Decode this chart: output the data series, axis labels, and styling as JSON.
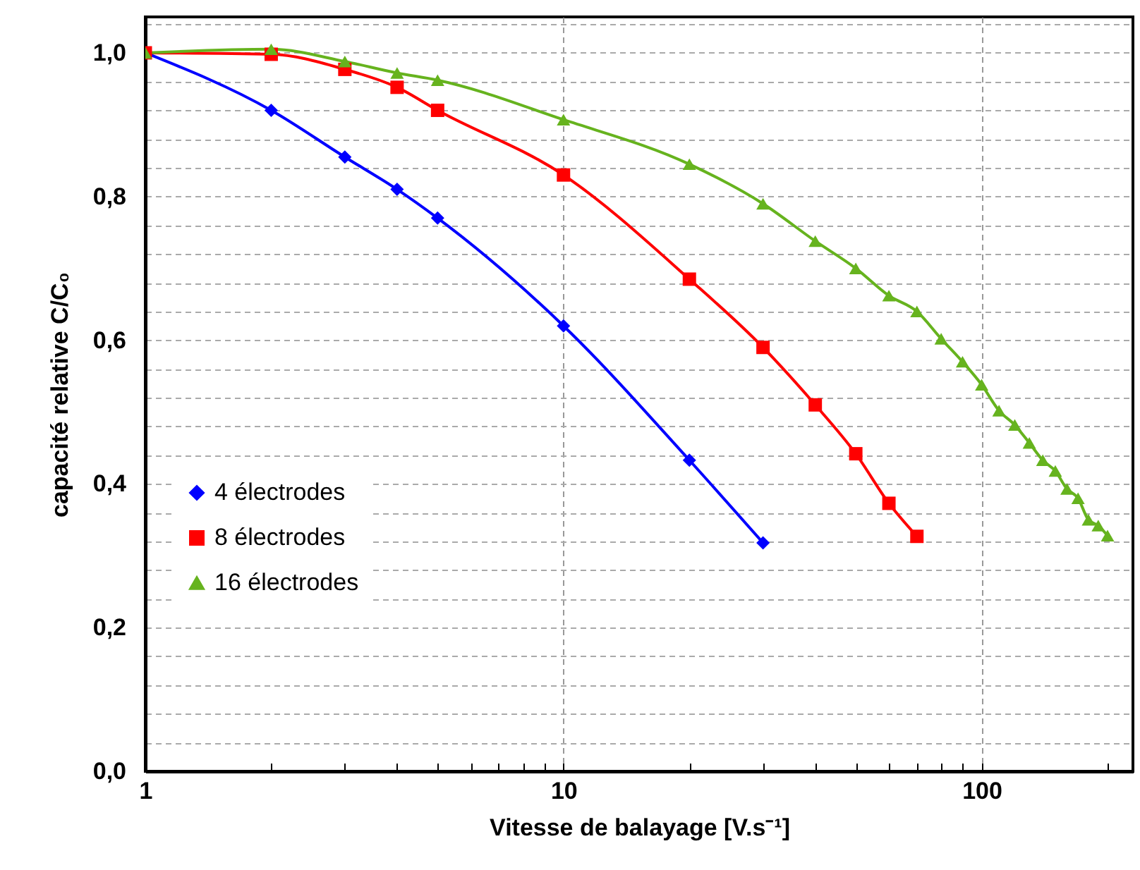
{
  "chart_data": {
    "type": "line",
    "xlabel": "Vitesse de balayage [V.s⁻¹]",
    "ylabel": "capacité relative C/C₀",
    "log": "x",
    "xlim": [
      1,
      230
    ],
    "ylim": [
      0,
      1.05
    ],
    "xticks": [
      1,
      {
        "value": 2,
        "label": null
      },
      {
        "value": 3,
        "label": null
      },
      {
        "value": 4,
        "label": null
      },
      {
        "value": 5,
        "label": null
      },
      {
        "value": 6,
        "label": null
      },
      {
        "value": 7,
        "label": null
      },
      {
        "value": 8,
        "label": null
      },
      {
        "value": 9,
        "label": null
      },
      10,
      {
        "value": 20,
        "label": null
      },
      {
        "value": 30,
        "label": null
      },
      {
        "value": 40,
        "label": null
      },
      {
        "value": 50,
        "label": null
      },
      {
        "value": 60,
        "label": null
      },
      {
        "value": 70,
        "label": null
      },
      {
        "value": 80,
        "label": null
      },
      {
        "value": 90,
        "label": null
      },
      100,
      {
        "value": 200,
        "label": null
      }
    ],
    "yticks": [
      {
        "value": 0,
        "label": "0,0"
      },
      {
        "value": 0.04,
        "label": null
      },
      {
        "value": 0.08,
        "label": null
      },
      {
        "value": 0.12,
        "label": null
      },
      {
        "value": 0.16,
        "label": null
      },
      {
        "value": 0.2,
        "label": "0,2"
      },
      {
        "value": 0.24,
        "label": null
      },
      {
        "value": 0.28,
        "label": null
      },
      {
        "value": 0.32,
        "label": null
      },
      {
        "value": 0.36,
        "label": null
      },
      {
        "value": 0.4,
        "label": "0,4"
      },
      {
        "value": 0.44,
        "label": null
      },
      {
        "value": 0.48,
        "label": null
      },
      {
        "value": 0.52,
        "label": null
      },
      {
        "value": 0.56,
        "label": null
      },
      {
        "value": 0.6,
        "label": "0,6"
      },
      {
        "value": 0.64,
        "label": null
      },
      {
        "value": 0.68,
        "label": null
      },
      {
        "value": 0.72,
        "label": null
      },
      {
        "value": 0.76,
        "label": null
      },
      {
        "value": 0.8,
        "label": "0,8"
      },
      {
        "value": 0.84,
        "label": null
      },
      {
        "value": 0.88,
        "label": null
      },
      {
        "value": 0.92,
        "label": null
      },
      {
        "value": 0.96,
        "label": null
      },
      {
        "value": 1,
        "label": "1,0"
      },
      {
        "value": 1.04,
        "label": null
      }
    ],
    "grid": true,
    "legend": "bottom left",
    "line_style": "solid",
    "series": [
      {
        "name": "4 électrodes",
        "color": "#0000ff",
        "marker": "diamond",
        "x": [
          1,
          2,
          3,
          4,
          5,
          10,
          20,
          30
        ],
        "values": [
          1.0,
          0.92,
          0.855,
          0.81,
          0.77,
          0.62,
          0.433,
          0.318
        ]
      },
      {
        "name": "8 électrodes",
        "color": "#ff0000",
        "marker": "square",
        "x": [
          1,
          2,
          3,
          4,
          5,
          10,
          20,
          30,
          40,
          50,
          60,
          70
        ],
        "values": [
          1.0,
          0.998,
          0.977,
          0.952,
          0.92,
          0.83,
          0.685,
          0.59,
          0.51,
          0.442,
          0.373,
          0.327
        ]
      },
      {
        "name": "16 électrodes",
        "color": "#66b31e",
        "marker": "triangle",
        "x": [
          1,
          2,
          3,
          4,
          5,
          10,
          20,
          30,
          40,
          50,
          60,
          70,
          80,
          90,
          100,
          110,
          120,
          130,
          140,
          150,
          160,
          170,
          180,
          190,
          200
        ],
        "values": [
          1.0,
          1.005,
          0.988,
          0.972,
          0.962,
          0.907,
          0.845,
          0.79,
          0.738,
          0.7,
          0.662,
          0.64,
          0.602,
          0.57,
          0.538,
          0.502,
          0.482,
          0.457,
          0.433,
          0.418,
          0.393,
          0.38,
          0.35,
          0.342,
          0.328
        ]
      }
    ]
  }
}
